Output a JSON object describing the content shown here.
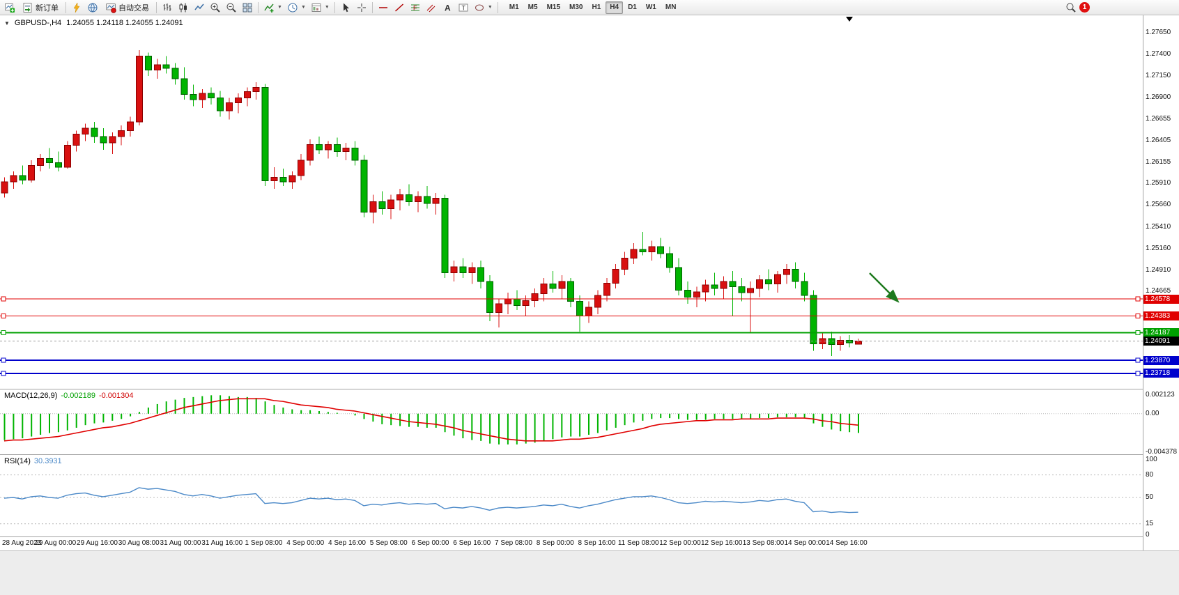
{
  "toolbar": {
    "new_order_label": "新订单",
    "auto_trading_label": "自动交易",
    "timeframes": [
      "M1",
      "M5",
      "M15",
      "M30",
      "H1",
      "H4",
      "D1",
      "W1",
      "MN"
    ],
    "active_timeframe": "H4",
    "notification_count": "1"
  },
  "chart": {
    "symbol_title": "GBPUSD-,H4",
    "ohlc_text": "1.24055 1.24118 1.24055 1.24091",
    "price_axis_labels": [
      "1.27650",
      "1.27400",
      "1.27150",
      "1.26900",
      "1.26655",
      "1.26405",
      "1.26155",
      "1.25910",
      "1.25660",
      "1.25410",
      "1.25160",
      "1.24910",
      "1.24665"
    ],
    "hlines": [
      {
        "price": 1.24578,
        "label": "1.24578",
        "color": "#e00000",
        "width": 1
      },
      {
        "price": 1.24383,
        "label": "1.24383",
        "color": "#e00000",
        "width": 1
      },
      {
        "price": 1.24187,
        "label": "1.24187",
        "color": "#00a000",
        "width": 2
      },
      {
        "price": 1.2387,
        "label": "1.23870",
        "color": "#0000cc",
        "width": 2
      },
      {
        "price": 1.23718,
        "label": "1.23718",
        "color": "#0000cc",
        "width": 2
      }
    ],
    "current_price": {
      "value": 1.24091,
      "label": "1.24091",
      "color": "#000000"
    }
  },
  "macd_panel": {
    "name": "MACD(12,26,9)",
    "value_main": "-0.002189",
    "value_signal": "-0.001304",
    "axis_labels": [
      "0.002123",
      "0.00",
      "-0.004378"
    ]
  },
  "rsi_panel": {
    "name": "RSI(14)",
    "value": "30.3931",
    "axis_labels": [
      "100",
      "80",
      "50",
      "15",
      "0"
    ]
  },
  "time_axis_labels": [
    "28 Aug 2023",
    "29 Aug 00:00",
    "29 Aug 16:00",
    "30 Aug 08:00",
    "31 Aug 00:00",
    "31 Aug 16:00",
    "1 Sep 08:00",
    "4 Sep 00:00",
    "4 Sep 16:00",
    "5 Sep 08:00",
    "6 Sep 00:00",
    "6 Sep 16:00",
    "7 Sep 08:00",
    "8 Sep 00:00",
    "8 Sep 16:00",
    "11 Sep 08:00",
    "12 Sep 00:00",
    "12 Sep 16:00",
    "13 Sep 08:00",
    "14 Sep 00:00",
    "14 Sep 16:00"
  ],
  "annotations": {
    "arrow_color": "#1e7a1e"
  },
  "chart_data": {
    "type": "candlestick",
    "symbol": "GBPUSD",
    "timeframe": "H4",
    "price_range": [
      1.23541,
      1.27851
    ],
    "bull_color": "#d81010",
    "bear_color": "#00b400",
    "candles": [
      [
        1.258,
        1.2598,
        1.2575,
        1.2593
      ],
      [
        1.2593,
        1.2605,
        1.2585,
        1.26
      ],
      [
        1.26,
        1.2612,
        1.259,
        1.2595
      ],
      [
        1.2595,
        1.2618,
        1.2592,
        1.2612
      ],
      [
        1.2612,
        1.2625,
        1.2605,
        1.262
      ],
      [
        1.262,
        1.2632,
        1.2608,
        1.2615
      ],
      [
        1.2615,
        1.2628,
        1.2605,
        1.261
      ],
      [
        1.261,
        1.264,
        1.2608,
        1.2635
      ],
      [
        1.2635,
        1.2652,
        1.2628,
        1.2648
      ],
      [
        1.2648,
        1.266,
        1.264,
        1.2655
      ],
      [
        1.2655,
        1.2662,
        1.2638,
        1.2645
      ],
      [
        1.2645,
        1.2655,
        1.263,
        1.2638
      ],
      [
        1.2638,
        1.265,
        1.2625,
        1.2645
      ],
      [
        1.2645,
        1.2658,
        1.2635,
        1.2652
      ],
      [
        1.2652,
        1.2668,
        1.2645,
        1.2662
      ],
      [
        1.2662,
        1.2745,
        1.2658,
        1.2738
      ],
      [
        1.2738,
        1.2742,
        1.2715,
        1.2722
      ],
      [
        1.2722,
        1.2735,
        1.2712,
        1.2728
      ],
      [
        1.2728,
        1.2738,
        1.2718,
        1.2724
      ],
      [
        1.2724,
        1.273,
        1.2705,
        1.2712
      ],
      [
        1.2712,
        1.2725,
        1.2688,
        1.2694
      ],
      [
        1.2694,
        1.2705,
        1.268,
        1.2688
      ],
      [
        1.2688,
        1.27,
        1.2678,
        1.2695
      ],
      [
        1.2695,
        1.2702,
        1.2682,
        1.269
      ],
      [
        1.269,
        1.2698,
        1.2668,
        1.2675
      ],
      [
        1.2675,
        1.269,
        1.2665,
        1.2684
      ],
      [
        1.2684,
        1.2695,
        1.2672,
        1.269
      ],
      [
        1.269,
        1.2702,
        1.268,
        1.2697
      ],
      [
        1.2697,
        1.2708,
        1.2688,
        1.2702
      ],
      [
        1.2702,
        1.2706,
        1.2588,
        1.2594
      ],
      [
        1.2594,
        1.261,
        1.2585,
        1.2598
      ],
      [
        1.2598,
        1.2608,
        1.2588,
        1.2593
      ],
      [
        1.2593,
        1.2605,
        1.2585,
        1.26
      ],
      [
        1.26,
        1.2625,
        1.2595,
        1.2618
      ],
      [
        1.2618,
        1.2642,
        1.2612,
        1.2636
      ],
      [
        1.2636,
        1.2645,
        1.2625,
        1.263
      ],
      [
        1.263,
        1.264,
        1.262,
        1.2636
      ],
      [
        1.2636,
        1.2644,
        1.2622,
        1.2628
      ],
      [
        1.2628,
        1.2638,
        1.2618,
        1.2632
      ],
      [
        1.2632,
        1.264,
        1.2612,
        1.2618
      ],
      [
        1.2618,
        1.2624,
        1.2552,
        1.2558
      ],
      [
        1.2558,
        1.2578,
        1.2545,
        1.257
      ],
      [
        1.257,
        1.2582,
        1.2555,
        1.2562
      ],
      [
        1.2562,
        1.2578,
        1.255,
        1.2572
      ],
      [
        1.2572,
        1.2585,
        1.256,
        1.2578
      ],
      [
        1.2578,
        1.259,
        1.2565,
        1.257
      ],
      [
        1.257,
        1.2582,
        1.2558,
        1.2576
      ],
      [
        1.2576,
        1.2588,
        1.2562,
        1.2568
      ],
      [
        1.2568,
        1.258,
        1.2555,
        1.2574
      ],
      [
        1.2574,
        1.2578,
        1.2482,
        1.2488
      ],
      [
        1.2488,
        1.2502,
        1.2478,
        1.2495
      ],
      [
        1.2495,
        1.2505,
        1.2482,
        1.2488
      ],
      [
        1.2488,
        1.25,
        1.2475,
        1.2494
      ],
      [
        1.2494,
        1.2502,
        1.247,
        1.2478
      ],
      [
        1.2478,
        1.2485,
        1.2432,
        1.2442
      ],
      [
        1.2442,
        1.2458,
        1.2425,
        1.2452
      ],
      [
        1.2452,
        1.2465,
        1.244,
        1.2458
      ],
      [
        1.2458,
        1.2468,
        1.2445,
        1.245
      ],
      [
        1.245,
        1.2462,
        1.2438,
        1.2456
      ],
      [
        1.2456,
        1.247,
        1.2448,
        1.2464
      ],
      [
        1.2464,
        1.2482,
        1.2455,
        1.2475
      ],
      [
        1.2475,
        1.249,
        1.2465,
        1.247
      ],
      [
        1.247,
        1.2485,
        1.2458,
        1.2478
      ],
      [
        1.2478,
        1.2482,
        1.2448,
        1.2455
      ],
      [
        1.2455,
        1.2462,
        1.242,
        1.2438
      ],
      [
        1.2438,
        1.2455,
        1.243,
        1.2448
      ],
      [
        1.2448,
        1.2468,
        1.244,
        1.2462
      ],
      [
        1.2462,
        1.2482,
        1.2455,
        1.2476
      ],
      [
        1.2476,
        1.2498,
        1.247,
        1.2492
      ],
      [
        1.2492,
        1.2512,
        1.2485,
        1.2505
      ],
      [
        1.2505,
        1.2522,
        1.2498,
        1.2515
      ],
      [
        1.2515,
        1.2535,
        1.2508,
        1.2512
      ],
      [
        1.2512,
        1.2525,
        1.2502,
        1.2518
      ],
      [
        1.2518,
        1.2528,
        1.2505,
        1.251
      ],
      [
        1.251,
        1.2518,
        1.2488,
        1.2494
      ],
      [
        1.2494,
        1.2505,
        1.2462,
        1.2468
      ],
      [
        1.2468,
        1.2478,
        1.2452,
        1.246
      ],
      [
        1.246,
        1.2472,
        1.2448,
        1.2466
      ],
      [
        1.2466,
        1.248,
        1.2455,
        1.2474
      ],
      [
        1.2474,
        1.2488,
        1.2462,
        1.247
      ],
      [
        1.247,
        1.2484,
        1.2458,
        1.2478
      ],
      [
        1.2478,
        1.249,
        1.2438,
        1.2472
      ],
      [
        1.2472,
        1.2482,
        1.2455,
        1.2465
      ],
      [
        1.2465,
        1.2478,
        1.2418,
        1.247
      ],
      [
        1.247,
        1.2485,
        1.246,
        1.248
      ],
      [
        1.248,
        1.2492,
        1.2468,
        1.2475
      ],
      [
        1.2475,
        1.249,
        1.2465,
        1.2486
      ],
      [
        1.2486,
        1.2498,
        1.2475,
        1.2492
      ],
      [
        1.2492,
        1.25,
        1.247,
        1.2478
      ],
      [
        1.2478,
        1.2488,
        1.2455,
        1.2462
      ],
      [
        1.2462,
        1.2468,
        1.2398,
        1.2406
      ],
      [
        1.2406,
        1.2418,
        1.24,
        1.2412
      ],
      [
        1.2412,
        1.242,
        1.2392,
        1.2405
      ],
      [
        1.2405,
        1.2415,
        1.2398,
        1.241
      ],
      [
        1.241,
        1.2416,
        1.2402,
        1.2407
      ],
      [
        1.24055,
        1.24118,
        1.24055,
        1.24091
      ]
    ],
    "macd": {
      "ylim": [
        -0.00462,
        0.00276
      ],
      "histogram_color": "#00b400",
      "signal_color": "#e00000",
      "histogram": [
        -0.003,
        -0.0029,
        -0.0028,
        -0.0026,
        -0.0024,
        -0.0022,
        -0.0021,
        -0.0019,
        -0.0016,
        -0.0013,
        -0.0011,
        -0.001,
        -0.0008,
        -0.0006,
        -0.0003,
        0.0002,
        0.0007,
        0.0011,
        0.0014,
        0.0016,
        0.0018,
        0.0019,
        0.002,
        0.0021,
        0.0021,
        0.002,
        0.0019,
        0.0019,
        0.0018,
        0.0014,
        0.001,
        0.0007,
        0.0005,
        0.0004,
        0.0004,
        0.0003,
        0.0002,
        0.0001,
        0.0,
        -0.0002,
        -0.0006,
        -0.0009,
        -0.0012,
        -0.0013,
        -0.0014,
        -0.0015,
        -0.0015,
        -0.0016,
        -0.0016,
        -0.0021,
        -0.0025,
        -0.0028,
        -0.003,
        -0.0031,
        -0.0034,
        -0.0035,
        -0.0035,
        -0.0035,
        -0.0034,
        -0.0033,
        -0.0031,
        -0.0029,
        -0.0027,
        -0.0026,
        -0.0026,
        -0.0024,
        -0.0022,
        -0.0019,
        -0.0016,
        -0.0013,
        -0.001,
        -0.0008,
        -0.0006,
        -0.0005,
        -0.0005,
        -0.0006,
        -0.0007,
        -0.0007,
        -0.0007,
        -0.0006,
        -0.0006,
        -0.0006,
        -0.0006,
        -0.0006,
        -0.0005,
        -0.0005,
        -0.0004,
        -0.0004,
        -0.0004,
        -0.0005,
        -0.0011,
        -0.0015,
        -0.0018,
        -0.002,
        -0.0021,
        -0.002189
      ],
      "signal": [
        -0.0031,
        -0.003,
        -0.003,
        -0.0029,
        -0.0028,
        -0.0027,
        -0.0026,
        -0.0024,
        -0.0022,
        -0.002,
        -0.0018,
        -0.0016,
        -0.0015,
        -0.0013,
        -0.0011,
        -0.0008,
        -0.0005,
        -0.0002,
        0.0001,
        0.0004,
        0.0007,
        0.0009,
        0.0011,
        0.0013,
        0.0015,
        0.0016,
        0.0017,
        0.0017,
        0.0017,
        0.0017,
        0.0015,
        0.0014,
        0.0012,
        0.001,
        0.0009,
        0.0008,
        0.0007,
        0.0005,
        0.0004,
        0.0003,
        0.0001,
        -0.0001,
        -0.0003,
        -0.0005,
        -0.0007,
        -0.0009,
        -0.001,
        -0.0011,
        -0.0012,
        -0.0014,
        -0.0016,
        -0.0019,
        -0.0021,
        -0.0023,
        -0.0025,
        -0.0027,
        -0.0029,
        -0.003,
        -0.0031,
        -0.0031,
        -0.0031,
        -0.0031,
        -0.003,
        -0.0029,
        -0.0029,
        -0.0028,
        -0.0027,
        -0.0025,
        -0.0023,
        -0.0021,
        -0.0019,
        -0.0017,
        -0.0014,
        -0.0012,
        -0.0011,
        -0.001,
        -0.0009,
        -0.0008,
        -0.0008,
        -0.0007,
        -0.0007,
        -0.0007,
        -0.0006,
        -0.0006,
        -0.0006,
        -0.0006,
        -0.0005,
        -0.0005,
        -0.0005,
        -0.0005,
        -0.0006,
        -0.0008,
        -0.0009,
        -0.0011,
        -0.0012,
        -0.001304
      ]
    },
    "rsi": {
      "ylim": [
        0,
        100
      ],
      "levels": [
        80,
        50,
        15
      ],
      "color": "#4b89c8",
      "values": [
        49,
        50,
        48,
        51,
        52,
        50,
        49,
        53,
        55,
        56,
        53,
        51,
        53,
        55,
        57,
        63,
        61,
        62,
        60,
        58,
        54,
        52,
        54,
        52,
        49,
        51,
        53,
        54,
        55,
        42,
        43,
        42,
        43,
        46,
        49,
        48,
        49,
        47,
        48,
        46,
        39,
        41,
        40,
        42,
        43,
        41,
        42,
        41,
        42,
        35,
        37,
        36,
        38,
        36,
        33,
        36,
        37,
        36,
        37,
        38,
        40,
        39,
        41,
        38,
        36,
        39,
        41,
        44,
        47,
        49,
        51,
        51,
        52,
        50,
        47,
        43,
        42,
        43,
        45,
        44,
        45,
        44,
        43,
        44,
        46,
        45,
        47,
        48,
        45,
        43,
        31,
        32,
        30,
        31,
        30,
        30.3931
      ]
    }
  }
}
